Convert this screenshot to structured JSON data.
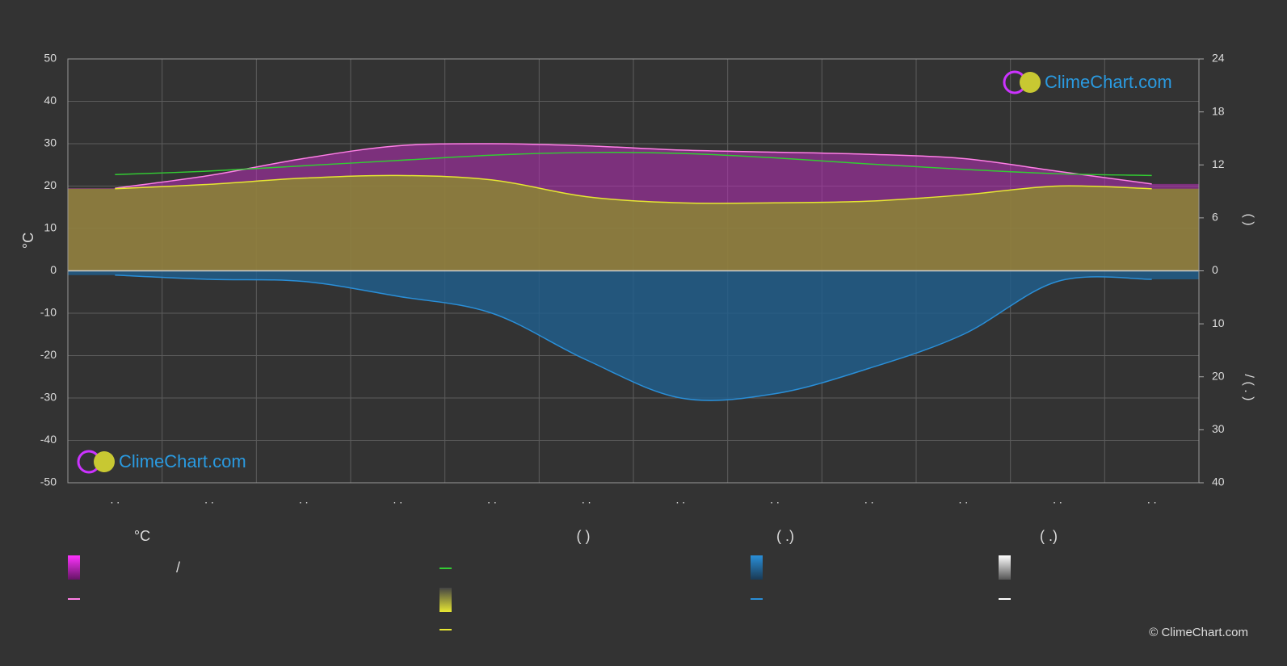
{
  "chart_data": {
    "type": "line",
    "y_label": "°C",
    "y2_label": "(        )",
    "y3_label": "/     (  .  )",
    "categories": [
      ". .",
      ". .",
      ". .",
      ". .",
      ". .",
      ". .",
      ". .",
      ". .",
      ". .",
      ". .",
      ". .",
      ". ."
    ],
    "ylim": [
      -50,
      50
    ],
    "yticks": [
      -50,
      -40,
      -30,
      -20,
      -10,
      0,
      10,
      20,
      30,
      40,
      50
    ],
    "y2lim": [
      0,
      24
    ],
    "y2ticks": [
      0,
      6,
      12,
      18,
      24
    ],
    "y3lim": [
      0,
      40
    ],
    "y3ticks": [
      0,
      10,
      20,
      30,
      40
    ],
    "grid": true,
    "series": [
      {
        "color": "#ff7fe6",
        "axis": "y",
        "values": [
          19.5,
          22.5,
          26.5,
          29.5,
          30,
          29.5,
          28.5,
          28,
          27.5,
          26.5,
          23.5,
          20.5
        ]
      },
      {
        "color": "#33cc33",
        "axis": "y2",
        "values": [
          10.9,
          11.3,
          11.9,
          12.5,
          13.1,
          13.4,
          13.3,
          12.8,
          12.1,
          11.5,
          11.0,
          10.8
        ]
      },
      {
        "color": "#e6e633",
        "axis": "y2",
        "values": [
          9.3,
          9.8,
          10.5,
          10.8,
          10.3,
          8.4,
          7.7,
          7.7,
          7.9,
          8.6,
          9.6,
          9.3
        ]
      },
      {
        "color": "#2a8fd8",
        "axis": "y3",
        "values": [
          0.8,
          1.6,
          2,
          4.8,
          8,
          16.8,
          24,
          23.2,
          18.4,
          12,
          2,
          1.6
        ]
      }
    ],
    "legend_headers": [
      "°C",
      "(          )",
      "(   .)",
      "(   .)"
    ],
    "legend_separator": "/",
    "logo": "ClimeChart.com",
    "copyright": "© ClimeChart.com"
  }
}
